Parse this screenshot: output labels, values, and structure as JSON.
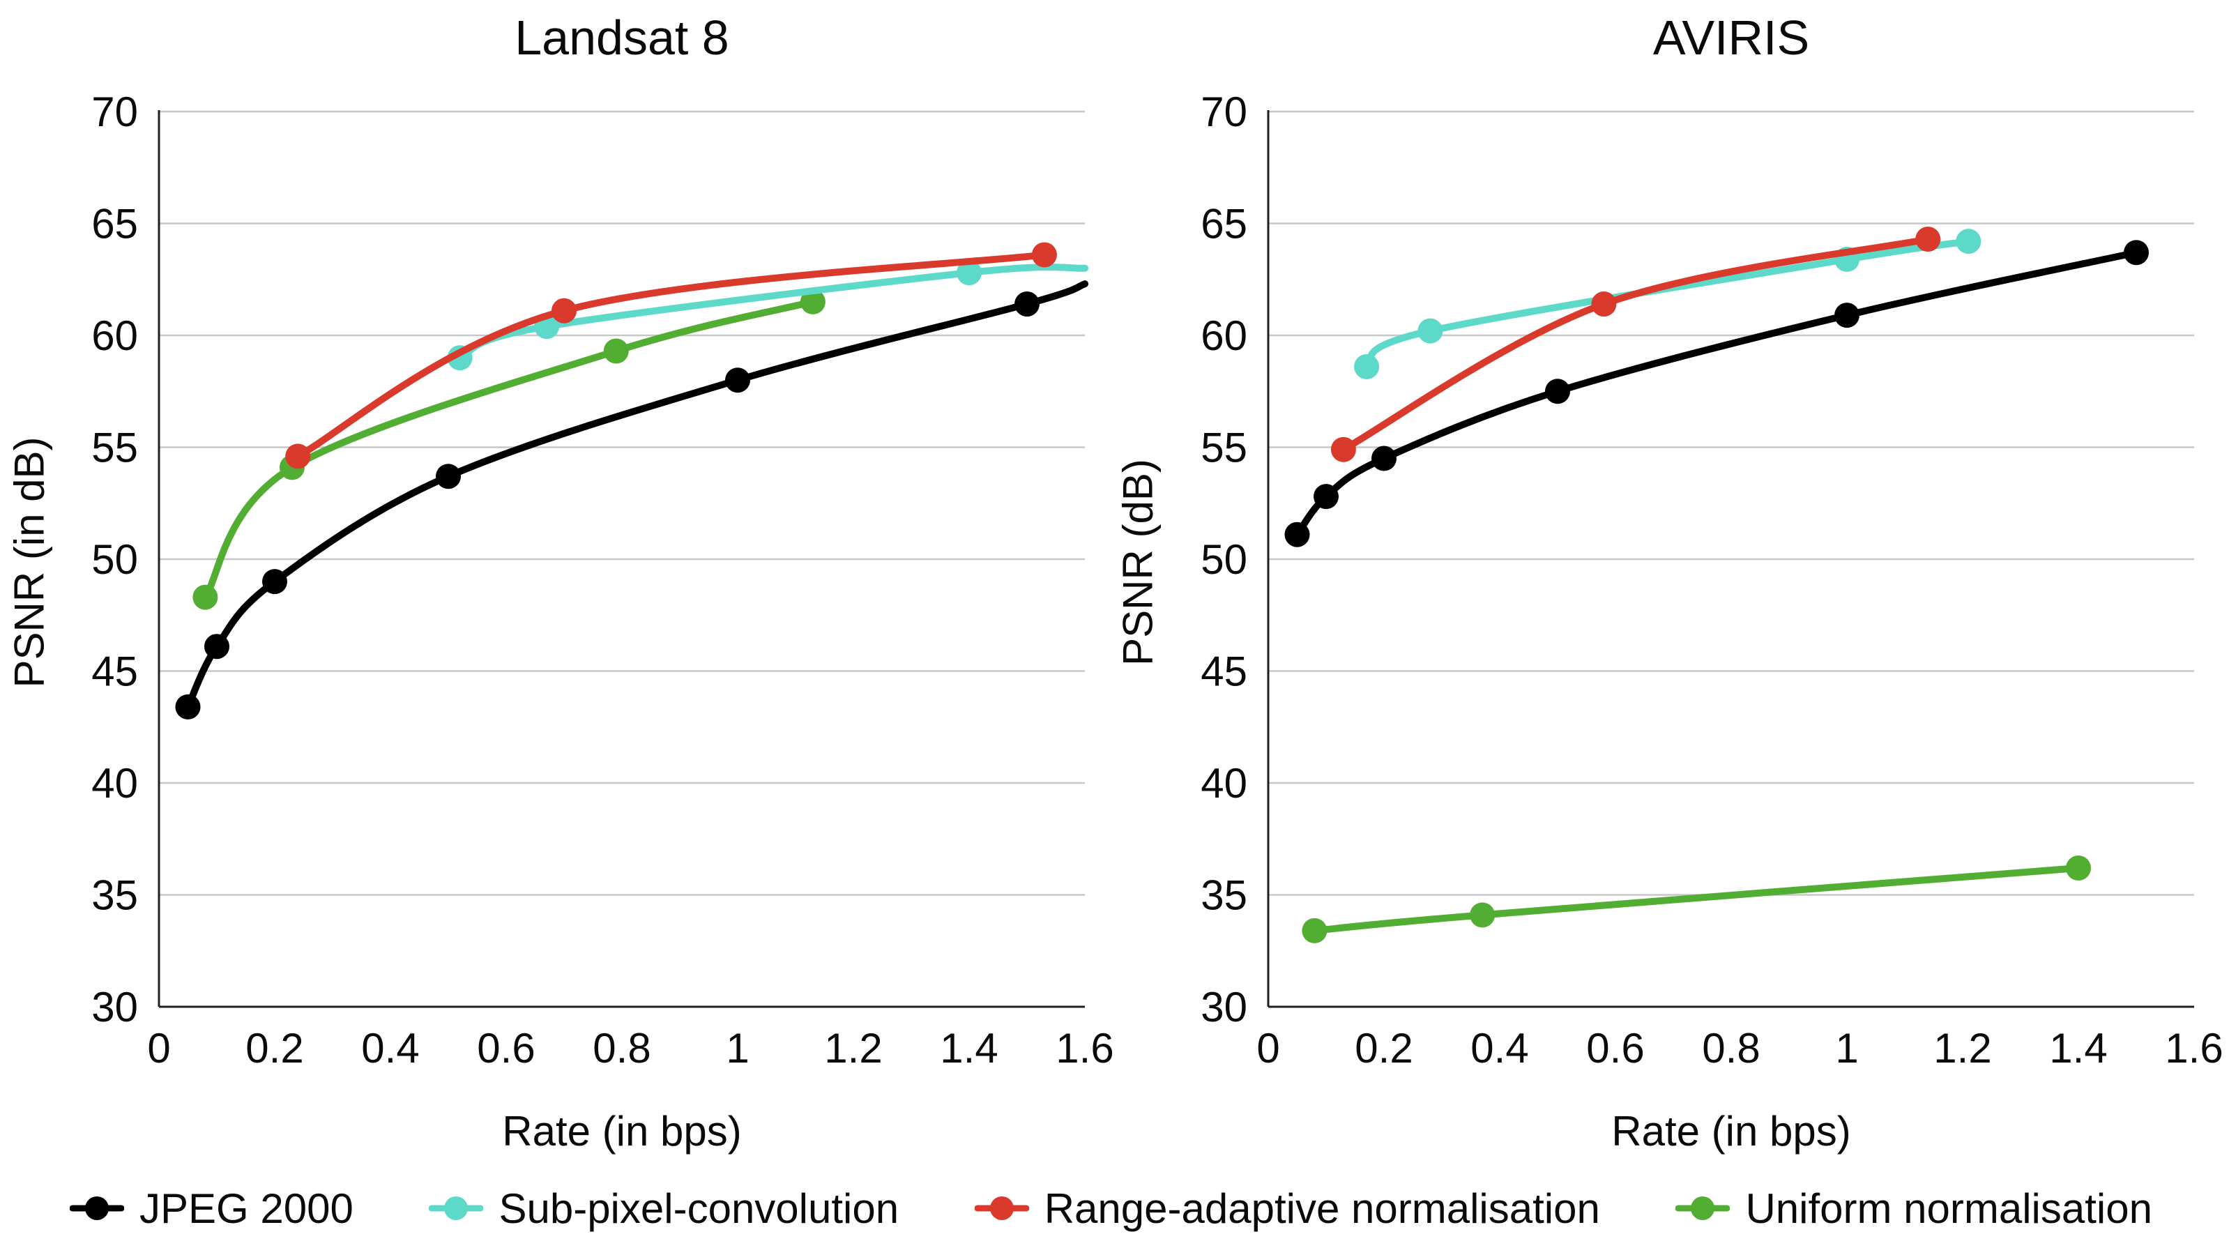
{
  "figure": {
    "background": "#ffffff",
    "grid_color": "#c7c7c7",
    "axis_color": "#1f1f1f"
  },
  "legend": {
    "items": [
      {
        "label": "JPEG 2000",
        "color": "#000000"
      },
      {
        "label": "Sub-pixel-convolution",
        "color": "#5cd9c8"
      },
      {
        "label": "Range-adaptive normalisation",
        "color": "#d93a2b"
      },
      {
        "label": "Uniform normalisation",
        "color": "#52ae32"
      }
    ]
  },
  "chart_data": [
    {
      "type": "line",
      "title": "Landsat 8",
      "xlabel": "Rate (in bps)",
      "ylabel": "PSNR (in dB)",
      "xlim": [
        0,
        1.6
      ],
      "ylim": [
        30,
        70
      ],
      "xticks": [
        "0",
        "0.2",
        "0.4",
        "0.6",
        "0.8",
        "1",
        "1.2",
        "1.4",
        "1.6"
      ],
      "yticks": [
        30,
        35,
        40,
        45,
        50,
        55,
        60,
        65,
        70
      ],
      "grid": true,
      "legend_position": "below-figure",
      "series": [
        {
          "name": "JPEG 2000",
          "color": "#000000",
          "points": [
            [
              0.05,
              43.4
            ],
            [
              0.1,
              46.1
            ],
            [
              0.2,
              49.0
            ],
            [
              0.5,
              53.7
            ],
            [
              1.0,
              58.0
            ],
            [
              1.5,
              61.4
            ]
          ],
          "line_extends_to": [
            [
              1.6,
              62.3
            ]
          ]
        },
        {
          "name": "Uniform normalisation",
          "color": "#52ae32",
          "points": [
            [
              0.08,
              48.3
            ],
            [
              0.23,
              54.1
            ],
            [
              0.79,
              59.3
            ],
            [
              1.13,
              61.5
            ]
          ]
        },
        {
          "name": "Sub-pixel-convolution",
          "color": "#5cd9c8",
          "points": [
            [
              0.52,
              59.0
            ],
            [
              0.67,
              60.4
            ],
            [
              1.4,
              62.8
            ]
          ],
          "line_extends_to": [
            [
              1.6,
              63.0
            ]
          ]
        },
        {
          "name": "Range-adaptive normalisation",
          "color": "#d93a2b",
          "points": [
            [
              0.24,
              54.6
            ],
            [
              0.7,
              61.1
            ],
            [
              1.53,
              63.6
            ]
          ]
        }
      ]
    },
    {
      "type": "line",
      "title": "AVIRIS",
      "xlabel": "Rate (in bps)",
      "ylabel": "PSNR (dB)",
      "xlim": [
        0,
        1.6
      ],
      "ylim": [
        30,
        70
      ],
      "xticks": [
        "0",
        "0.2",
        "0.4",
        "0.6",
        "0.8",
        "1",
        "1.2",
        "1.4",
        "1.6"
      ],
      "yticks": [
        30,
        35,
        40,
        45,
        50,
        55,
        60,
        65,
        70
      ],
      "grid": true,
      "legend_position": "below-figure",
      "series": [
        {
          "name": "JPEG 2000",
          "color": "#000000",
          "points": [
            [
              0.05,
              51.1
            ],
            [
              0.1,
              52.8
            ],
            [
              0.2,
              54.5
            ],
            [
              0.5,
              57.5
            ],
            [
              1.0,
              60.9
            ],
            [
              1.5,
              63.7
            ]
          ]
        },
        {
          "name": "Uniform normalisation",
          "color": "#52ae32",
          "points": [
            [
              0.08,
              33.4
            ],
            [
              0.37,
              34.1
            ],
            [
              1.4,
              36.2
            ]
          ]
        },
        {
          "name": "Sub-pixel-convolution",
          "color": "#5cd9c8",
          "points": [
            [
              0.17,
              58.6
            ],
            [
              0.28,
              60.2
            ],
            [
              1.0,
              63.4
            ],
            [
              1.21,
              64.2
            ]
          ]
        },
        {
          "name": "Range-adaptive normalisation",
          "color": "#d93a2b",
          "points": [
            [
              0.13,
              54.9
            ],
            [
              0.58,
              61.4
            ],
            [
              1.14,
              64.3
            ]
          ]
        }
      ]
    }
  ]
}
